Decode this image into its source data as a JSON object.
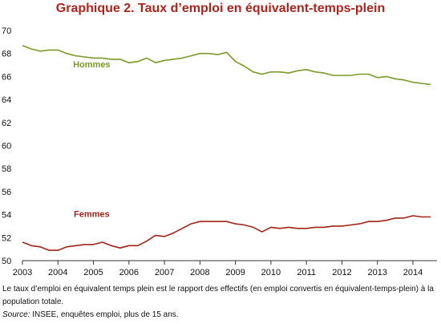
{
  "title": "Graphique 2. Taux d’emploi en équivalent-temps-plein",
  "note": "Le taux d’emploi en équivalent temps plein est le rapport des effectifs (en emploi convertis en équivalent-temps-plein) à la population totale.",
  "source_label": "Source:",
  "source_text": " INSEE, enquêtes emploi, plus de 15 ans.",
  "colors": {
    "hommes": "#7a9a2a",
    "femmes": "#a02418",
    "axis": "#333333"
  },
  "chart_data": {
    "type": "line",
    "title": "Graphique 2. Taux d’emploi en équivalent-temps-plein",
    "xlabel": "",
    "ylabel": "",
    "xlim": [
      2003,
      2014.75
    ],
    "ylim": [
      50,
      70
    ],
    "grid": false,
    "x_ticks": [
      "2003",
      "2004",
      "2005",
      "2006",
      "2007",
      "2008",
      "2009",
      "2010",
      "2011",
      "2012",
      "2013",
      "2014"
    ],
    "y_ticks": [
      "50",
      "52",
      "54",
      "56",
      "58",
      "60",
      "62",
      "64",
      "66",
      "68",
      "70"
    ],
    "x": [
      2003.0,
      2003.25,
      2003.5,
      2003.75,
      2004.0,
      2004.25,
      2004.5,
      2004.75,
      2005.0,
      2005.25,
      2005.5,
      2005.75,
      2006.0,
      2006.25,
      2006.5,
      2006.75,
      2007.0,
      2007.25,
      2007.5,
      2007.75,
      2008.0,
      2008.25,
      2008.5,
      2008.75,
      2009.0,
      2009.25,
      2009.5,
      2009.75,
      2010.0,
      2010.25,
      2010.5,
      2010.75,
      2011.0,
      2011.25,
      2011.5,
      2011.75,
      2012.0,
      2012.25,
      2012.5,
      2012.75,
      2013.0,
      2013.25,
      2013.5,
      2013.75,
      2014.0,
      2014.25,
      2014.5
    ],
    "series": [
      {
        "name": "Hommes",
        "color": "#7a9a2a",
        "values": [
          68.7,
          68.4,
          68.2,
          68.3,
          68.3,
          68.0,
          67.8,
          67.7,
          67.6,
          67.6,
          67.5,
          67.5,
          67.2,
          67.3,
          67.6,
          67.2,
          67.4,
          67.5,
          67.6,
          67.8,
          68.0,
          68.0,
          67.9,
          68.1,
          67.3,
          66.9,
          66.4,
          66.2,
          66.4,
          66.4,
          66.3,
          66.5,
          66.6,
          66.4,
          66.3,
          66.1,
          66.1,
          66.1,
          66.2,
          66.2,
          65.9,
          66.0,
          65.8,
          65.7,
          65.5,
          65.4,
          65.3
        ]
      },
      {
        "name": "Femmes",
        "color": "#a02418",
        "values": [
          51.6,
          51.3,
          51.2,
          50.9,
          50.9,
          51.2,
          51.3,
          51.4,
          51.4,
          51.6,
          51.3,
          51.1,
          51.3,
          51.3,
          51.7,
          52.2,
          52.1,
          52.4,
          52.8,
          53.2,
          53.4,
          53.4,
          53.4,
          53.4,
          53.2,
          53.1,
          52.9,
          52.5,
          52.9,
          52.8,
          52.9,
          52.8,
          52.8,
          52.9,
          52.9,
          53.0,
          53.0,
          53.1,
          53.2,
          53.4,
          53.4,
          53.5,
          53.7,
          53.7,
          53.9,
          53.8,
          53.8
        ]
      }
    ]
  }
}
